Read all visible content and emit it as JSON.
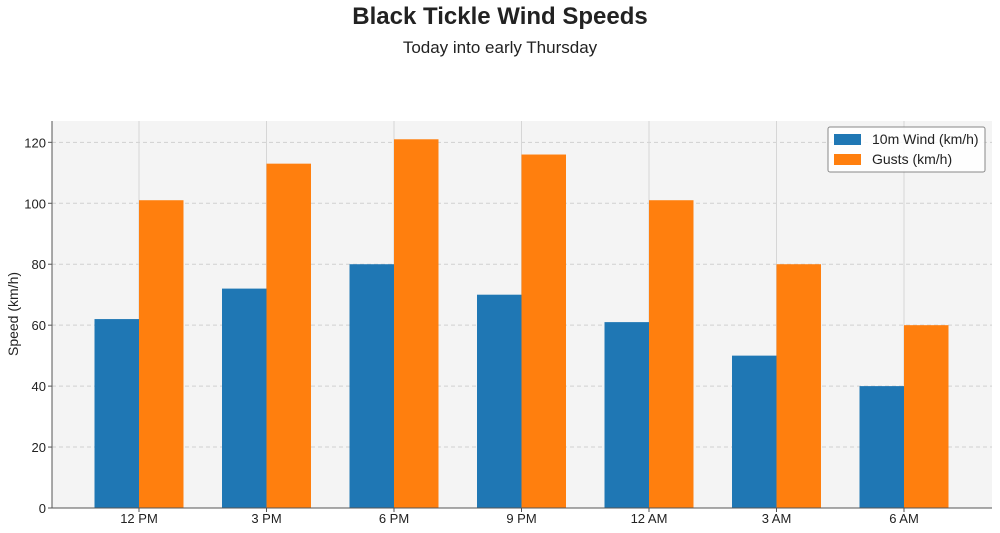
{
  "chart_data": {
    "type": "bar",
    "title": "Black Tickle Wind Speeds",
    "subtitle": "Today into early Thursday",
    "xlabel": "",
    "ylabel": "Speed (km/h)",
    "ylim": [
      0,
      127
    ],
    "yticks": [
      0,
      20,
      40,
      60,
      80,
      100,
      120
    ],
    "grid": true,
    "legend_position": "top-right",
    "categories": [
      "12 PM",
      "3 PM",
      "6 PM",
      "9 PM",
      "12 AM",
      "3 AM",
      "6 AM"
    ],
    "series": [
      {
        "name": "10m Wind (km/h)",
        "color": "#1f77b4",
        "values": [
          62,
          72,
          80,
          70,
          61,
          50,
          40
        ]
      },
      {
        "name": "Gusts (km/h)",
        "color": "#ff7f0e",
        "values": [
          101,
          113,
          121,
          116,
          101,
          80,
          60
        ]
      }
    ]
  }
}
